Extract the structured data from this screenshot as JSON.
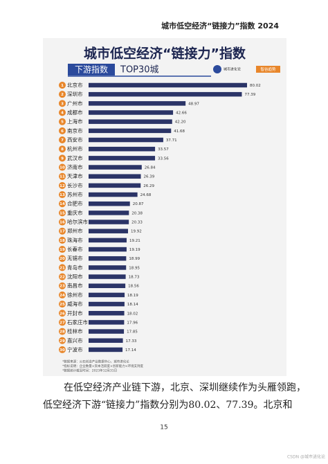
{
  "header": {
    "running_title": "城市低空经济“链接力”指数 2024"
  },
  "chart_data": {
    "type": "bar",
    "orientation": "horizontal",
    "title": "城市低空经济“链接力”指数",
    "subtitle_tag": "下游指数",
    "subtitle": "TOP30城",
    "logos": [
      "城市进化论",
      "智谷趋势"
    ],
    "ranks": [
      1,
      2,
      3,
      4,
      5,
      6,
      7,
      8,
      9,
      10,
      11,
      12,
      13,
      14,
      15,
      16,
      17,
      18,
      19,
      20,
      21,
      22,
      23,
      24,
      25,
      26,
      27,
      28,
      29,
      30
    ],
    "categories": [
      "北京市",
      "深圳市",
      "广州市",
      "成都市",
      "上海市",
      "南京市",
      "西安市",
      "杭州市",
      "武汉市",
      "济南市",
      "天津市",
      "长沙市",
      "苏州市",
      "合肥市",
      "重庆市",
      "哈尔滨市",
      "郑州市",
      "珠海市",
      "长春市",
      "无锡市",
      "青岛市",
      "沈阳市",
      "南昌市",
      "徐州市",
      "威海市",
      "开封市",
      "石家庄市",
      "桂林市",
      "嘉兴市",
      "宁波市"
    ],
    "values": [
      80.02,
      77.39,
      48.97,
      42.66,
      42.2,
      41.68,
      37.71,
      33.57,
      33.56,
      26.84,
      26.39,
      26.29,
      24.68,
      20.87,
      20.38,
      20.33,
      19.92,
      19.21,
      19.19,
      18.99,
      18.95,
      18.73,
      18.56,
      18.19,
      18.14,
      18.02,
      17.96,
      17.85,
      17.33,
      17.14
    ],
    "value_labels": [
      "80.02",
      "77.39",
      "48.97",
      "42.66",
      "42.20",
      "41.68",
      "37.71",
      "33.57",
      "33.56",
      "26.84",
      "26.39",
      "26.29",
      "24.68",
      "20.87",
      "20.38",
      "20.33",
      "19.92",
      "19.21",
      "19.19",
      "18.99",
      "18.95",
      "18.73",
      "18.56",
      "18.19",
      "18.14",
      "18.02",
      "17.96",
      "17.85",
      "17.33",
      "17.14"
    ],
    "color": "#2b3467",
    "rank_color": "#e8862a",
    "footnotes": [
      "*数据来源：火石创造产业数据中心，城市进化论",
      "*指标说明：企业数量×资本活跃度×创新能力×环境支持度",
      "*数据统计截至时间：2023年12月31日"
    ]
  },
  "body": {
    "paragraph_lines": [
      "在低空经济产业链下游，北京、深圳继续作为头雁领跑，",
      "低空经济下游“链接力”指数分别为80.02、77.39。北京和"
    ]
  },
  "page_number": "15",
  "watermark": "CSDN @城市进化论"
}
